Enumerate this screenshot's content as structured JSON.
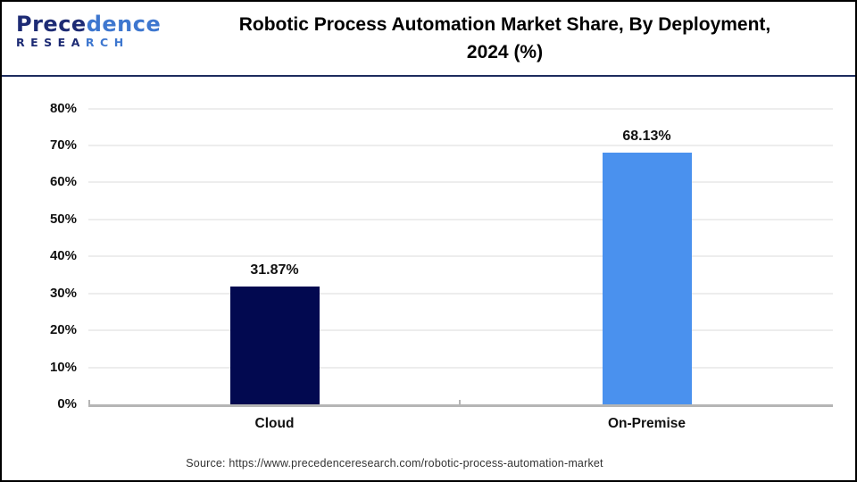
{
  "header": {
    "brand": {
      "name": "Precedence",
      "name_part1": "Prece",
      "name_part2": "dence",
      "sub": "RESEARCH",
      "sub_part1": "RESEA",
      "sub_part2": "RCH"
    },
    "title_line1": "Robotic Process Automation Market Share, By Deployment,",
    "title_line2": "2024 (%)"
  },
  "chart_data": {
    "type": "bar",
    "title": "Robotic Process Automation Market Share, By Deployment, 2024 (%)",
    "categories": [
      "Cloud",
      "On-Premise"
    ],
    "values": [
      31.87,
      68.13
    ],
    "value_labels": [
      "31.87%",
      "68.13%"
    ],
    "bar_colors": [
      "#020950",
      "#4a91ee"
    ],
    "xlabel": "",
    "ylabel": "",
    "ylim": [
      0,
      80
    ],
    "y_ticks": [
      0,
      10,
      20,
      30,
      40,
      50,
      60,
      70,
      80
    ],
    "y_tick_labels": [
      "0%",
      "10%",
      "20%",
      "30%",
      "40%",
      "50%",
      "60%",
      "70%",
      "80%"
    ],
    "grid": true,
    "legend": false
  },
  "colors": {
    "bar_cloud": "#020950",
    "bar_on_premise": "#4a91ee",
    "header_separator": "#1d2c5e",
    "gridline": "#ededed",
    "axis_line": "#b5b5b5",
    "logo_navy": "#1d2b74",
    "logo_blue": "#3e77cf"
  },
  "footer": {
    "source": "Source: https://www.precedenceresearch.com/robotic-process-automation-market"
  }
}
